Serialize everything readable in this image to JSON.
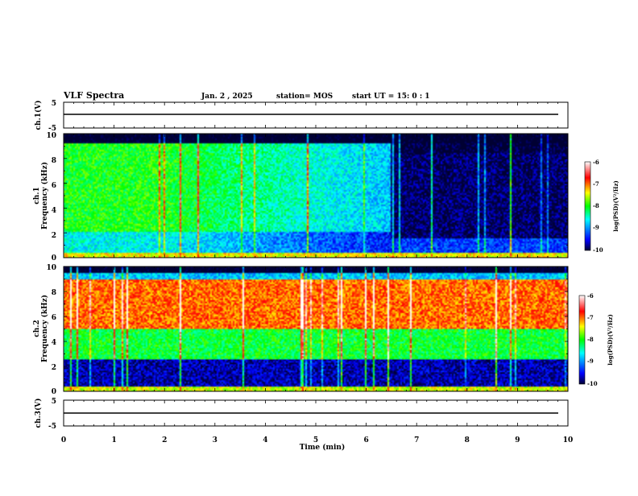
{
  "header": {
    "title": "VLF Spectra",
    "date": "Jan. 2 , 2025",
    "station": "station= MOS",
    "start": "start UT =  15: 0 : 1"
  },
  "colors": {
    "background": "#ffffff",
    "axes": "#000000",
    "colormap": [
      "#000033",
      "#0000ff",
      "#00ffff",
      "#00ff00",
      "#ffff00",
      "#ff0000",
      "#ffffff"
    ]
  },
  "chart_data": [
    {
      "type": "line",
      "ylabel": "ch.1(V)",
      "ylim": [
        -5,
        5
      ],
      "yticks": [
        "5",
        "-5"
      ],
      "xlim": [
        0,
        10
      ],
      "description_level": 0
    },
    {
      "type": "heatmap",
      "ylabel": "ch.1\nFrequency (kHz)",
      "ylabel_lines": [
        "ch.1",
        "Frequency (kHz)"
      ],
      "ylim": [
        0,
        10
      ],
      "yticks": [
        "0",
        "2",
        "4",
        "6",
        "8",
        "10"
      ],
      "xlim": [
        0,
        10
      ],
      "colorbar": {
        "label": "log(PSD)(V²/Hz)",
        "ticks": [
          "-6",
          "-7",
          "-8",
          "-9",
          "-10"
        ],
        "range": [
          -10,
          -6
        ]
      },
      "regions": [
        {
          "t": [
            0,
            2
          ],
          "f": [
            2,
            9
          ],
          "level": -8
        },
        {
          "t": [
            2,
            6.5
          ],
          "f": [
            1,
            7
          ],
          "level": -8.6
        },
        {
          "t": [
            6.5,
            10
          ],
          "f": [
            0.5,
            10
          ],
          "level": -9.8
        }
      ]
    },
    {
      "type": "heatmap",
      "ylabel": "ch.2\nFrequency (kHz)",
      "ylabel_lines": [
        "ch.2",
        "Frequency (kHz)"
      ],
      "ylim": [
        0,
        10
      ],
      "yticks": [
        "0",
        "2",
        "4",
        "6",
        "8",
        "10"
      ],
      "xlim": [
        0,
        10
      ],
      "colorbar": {
        "label": "log(PSD)(V²/Hz)",
        "ticks": [
          "-6",
          "-7",
          "-8",
          "-9",
          "-10"
        ],
        "range": [
          -10,
          -6
        ]
      },
      "regions": [
        {
          "t": [
            0,
            10
          ],
          "f": [
            5,
            9
          ],
          "level": -7
        },
        {
          "t": [
            0,
            10
          ],
          "f": [
            3,
            5
          ],
          "level": -8
        },
        {
          "t": [
            0,
            10
          ],
          "f": [
            0.5,
            2
          ],
          "level": -9.6
        }
      ]
    },
    {
      "type": "line",
      "ylabel": "ch.3(V)",
      "ylim": [
        -5,
        5
      ],
      "yticks": [
        "5",
        "-5"
      ],
      "xlim": [
        0,
        10
      ],
      "xticks": [
        "0",
        "1",
        "2",
        "3",
        "4",
        "5",
        "6",
        "7",
        "8",
        "9",
        "10"
      ],
      "xlabel": "Time (min)"
    }
  ]
}
